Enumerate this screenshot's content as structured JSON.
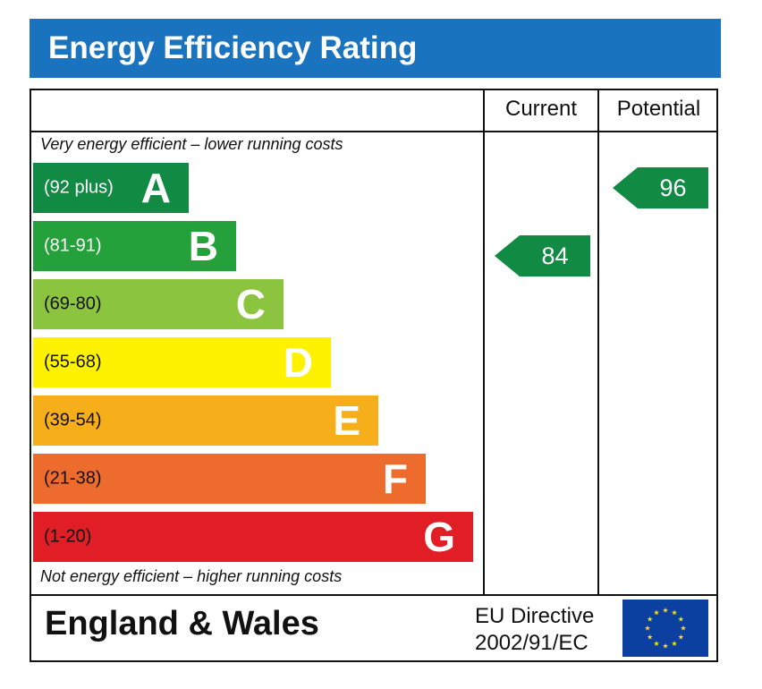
{
  "header": {
    "title": "Energy Efficiency Rating"
  },
  "columns": {
    "current": "Current",
    "potential": "Potential"
  },
  "captions": {
    "top": "Very energy efficient – lower running costs",
    "bottom": "Not energy efficient – higher running costs"
  },
  "chart_data": {
    "type": "bar",
    "title": "Energy Efficiency Rating",
    "categories": [
      "A",
      "B",
      "C",
      "D",
      "E",
      "F",
      "G"
    ],
    "bands": [
      {
        "letter": "A",
        "range": "(92 plus)",
        "color": "#118a44",
        "range_text_color": "#ffffff"
      },
      {
        "letter": "B",
        "range": "(81-91)",
        "color": "#24a13a",
        "range_text_color": "#ffffff"
      },
      {
        "letter": "C",
        "range": "(69-80)",
        "color": "#8bc43f",
        "range_text_color": "#111111"
      },
      {
        "letter": "D",
        "range": "(55-68)",
        "color": "#fff200",
        "range_text_color": "#111111"
      },
      {
        "letter": "E",
        "range": "(39-54)",
        "color": "#f7ae1b",
        "range_text_color": "#111111"
      },
      {
        "letter": "F",
        "range": "(21-38)",
        "color": "#ec6b2d",
        "range_text_color": "#111111"
      },
      {
        "letter": "G",
        "range": "(1-20)",
        "color": "#e11d25",
        "range_text_color": "#111111"
      }
    ],
    "series": [
      {
        "name": "Current",
        "value": 84,
        "band": "B",
        "color": "#118a44"
      },
      {
        "name": "Potential",
        "value": 96,
        "band": "A",
        "color": "#118a44"
      }
    ]
  },
  "footer": {
    "country": "England & Wales",
    "directive_line1": "EU Directive",
    "directive_line2": "2002/91/EC",
    "flag_colors": {
      "background": "#0b3fa0",
      "stars": "#ffdd00"
    }
  }
}
